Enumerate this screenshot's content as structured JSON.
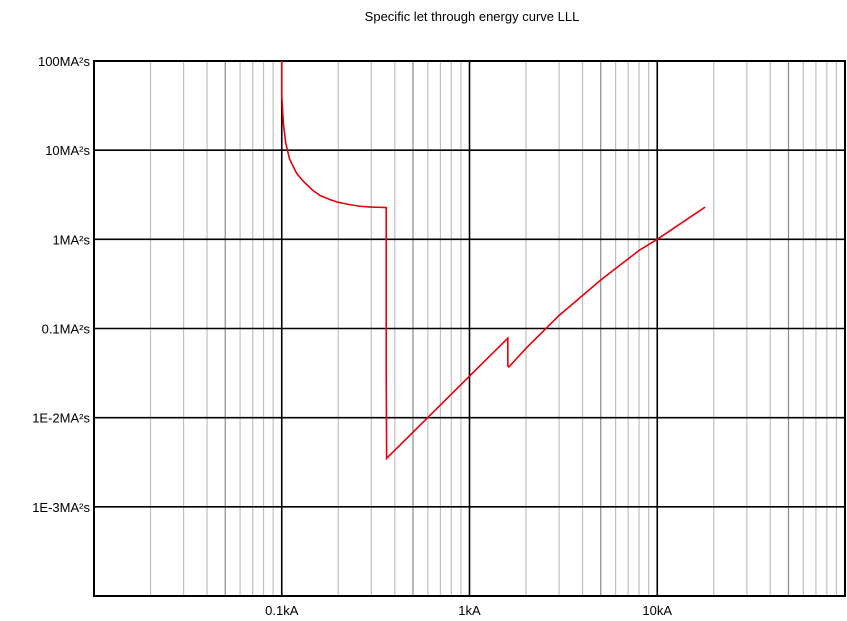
{
  "chart_data": {
    "type": "line",
    "title": "Specific let through energy curve LLL",
    "xscale": "log",
    "yscale": "log",
    "xlim": [
      0.01,
      100
    ],
    "ylim": [
      0.0001,
      100
    ],
    "x_unit": "kA",
    "y_unit": "MA²s",
    "x_ticks": [
      {
        "value": 0.1,
        "label": "0.1kA"
      },
      {
        "value": 1,
        "label": "1kA"
      },
      {
        "value": 10,
        "label": "10kA"
      }
    ],
    "y_ticks": [
      {
        "value": 100,
        "label": "100MA²s"
      },
      {
        "value": 10,
        "label": "10MA²s"
      },
      {
        "value": 1,
        "label": "1MA²s"
      },
      {
        "value": 0.1,
        "label": "0.1MA²s"
      },
      {
        "value": 0.01,
        "label": "1E-2MA²s"
      },
      {
        "value": 0.001,
        "label": "1E-3MA²s"
      }
    ],
    "grid": true,
    "series": [
      {
        "color": "#e8000b",
        "x": [
          0.1,
          0.1,
          0.102,
          0.105,
          0.11,
          0.12,
          0.13,
          0.145,
          0.16,
          0.18,
          0.2,
          0.23,
          0.26,
          0.3,
          0.35,
          0.36,
          0.36,
          0.362,
          1.6,
          1.6,
          1.62,
          2.0,
          3.0,
          5.0,
          8.0,
          10.0,
          18.0
        ],
        "y": [
          100,
          40,
          20,
          12,
          8,
          5.5,
          4.5,
          3.6,
          3.1,
          2.8,
          2.6,
          2.45,
          2.35,
          2.3,
          2.28,
          2.27,
          0.035,
          0.0035,
          0.078,
          0.038,
          0.037,
          0.06,
          0.14,
          0.35,
          0.75,
          1.0,
          2.3
        ]
      }
    ]
  }
}
